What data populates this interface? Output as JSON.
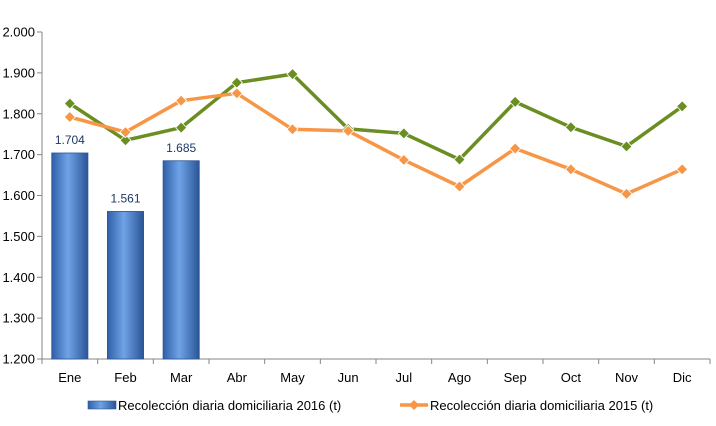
{
  "chart_data": {
    "type": "bar",
    "categories": [
      "Ene",
      "Feb",
      "Mar",
      "Abr",
      "May",
      "Jun",
      "Jul",
      "Ago",
      "Sep",
      "Oct",
      "Nov",
      "Dic"
    ],
    "ylim": [
      1200,
      2000
    ],
    "yticks": [
      1200,
      1300,
      1400,
      1500,
      1600,
      1700,
      1800,
      1900,
      2000
    ],
    "ytick_labels": [
      "1.200",
      "1.300",
      "1.400",
      "1.500",
      "1.600",
      "1.700",
      "1.800",
      "1.900",
      "2.000"
    ],
    "grid": false,
    "legend_position": "bottom",
    "series": [
      {
        "name": "Recolección diaria domiciliaria 2016 (t)",
        "type": "bar",
        "color": "#4a86d4",
        "values": [
          1704,
          1561,
          1685,
          null,
          null,
          null,
          null,
          null,
          null,
          null,
          null,
          null
        ],
        "data_labels": [
          "1.704",
          "1.561",
          "1.685"
        ]
      },
      {
        "name": "Recolección diaria domiciliaria 2015 (t)",
        "type": "line",
        "color": "#f79646",
        "values": [
          1792,
          1755,
          1832,
          1850,
          1762,
          1758,
          1687,
          1622,
          1715,
          1664,
          1604,
          1664
        ]
      },
      {
        "type": "line",
        "color": "#6b8e23",
        "values": [
          1825,
          1735,
          1766,
          1876,
          1897,
          1763,
          1752,
          1688,
          1829,
          1767,
          1720,
          1818
        ]
      }
    ]
  }
}
